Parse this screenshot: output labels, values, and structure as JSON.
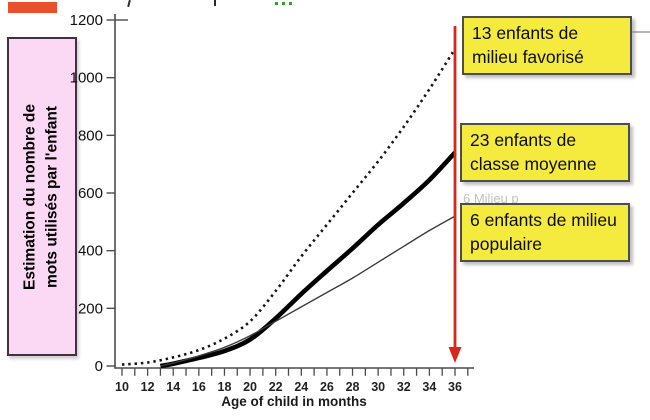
{
  "slide": {
    "background": "#ffffff",
    "top_left_bar_color": "#e8512b",
    "green_mark_color": "#2f9e2f"
  },
  "ylabel_box": {
    "line1": "Estimation du nombre de",
    "line2": "mots utilisés par l'enfant",
    "bg": "#fbd9f4",
    "border_color": "#413141"
  },
  "annotations": {
    "bg": "#f5ea3e",
    "border_color": "#4d4d4d",
    "ghost_text": "6 Milieu p",
    "boxes": [
      {
        "label": "13 enfants de milieu favorisé"
      },
      {
        "label": "23 enfants de classe moyenne"
      },
      {
        "label": "6 enfants de milieu populaire"
      }
    ]
  },
  "chart_data": {
    "type": "line",
    "title": "",
    "xlabel": "Age of child in months",
    "ylabel": "Estimation du nombre de mots utilisés par l'enfant",
    "xlim": [
      10,
      37
    ],
    "ylim": [
      0,
      1200
    ],
    "grid": false,
    "x_tick_labels": [
      10,
      12,
      14,
      16,
      18,
      20,
      22,
      24,
      26,
      28,
      30,
      32,
      34,
      36
    ],
    "x_minor_tick_step": 1,
    "y_tick_labels": [
      0,
      200,
      400,
      600,
      800,
      1000,
      1200
    ],
    "axis_color": "#4c4c4c",
    "series": [
      {
        "name": "13 enfants de milieu favorisé",
        "line_style": "dotted",
        "color": "#141414",
        "x": [
          10,
          12,
          14,
          16,
          18,
          20,
          22,
          24,
          26,
          28,
          30,
          32,
          34,
          36
        ],
        "values": [
          5,
          12,
          30,
          55,
          95,
          155,
          260,
          380,
          490,
          600,
          710,
          830,
          960,
          1100
        ]
      },
      {
        "name": "23 enfants de classe moyenne",
        "line_style": "thick",
        "color": "#000000",
        "x": [
          13,
          14,
          16,
          18,
          20,
          22,
          24,
          26,
          28,
          30,
          32,
          34,
          36
        ],
        "values": [
          0,
          8,
          28,
          52,
          92,
          165,
          250,
          330,
          408,
          490,
          565,
          645,
          740
        ]
      },
      {
        "name": "6 enfants de milieu populaire",
        "line_style": "thin",
        "color": "#3c3c3c",
        "x": [
          13,
          14,
          16,
          18,
          20,
          22,
          24,
          26,
          28,
          30,
          32,
          34,
          36
        ],
        "values": [
          0,
          10,
          35,
          65,
          105,
          155,
          205,
          255,
          305,
          360,
          415,
          470,
          520
        ]
      }
    ],
    "arrow": {
      "at_x": 36,
      "direction": "down",
      "color": "#d7271d"
    }
  }
}
